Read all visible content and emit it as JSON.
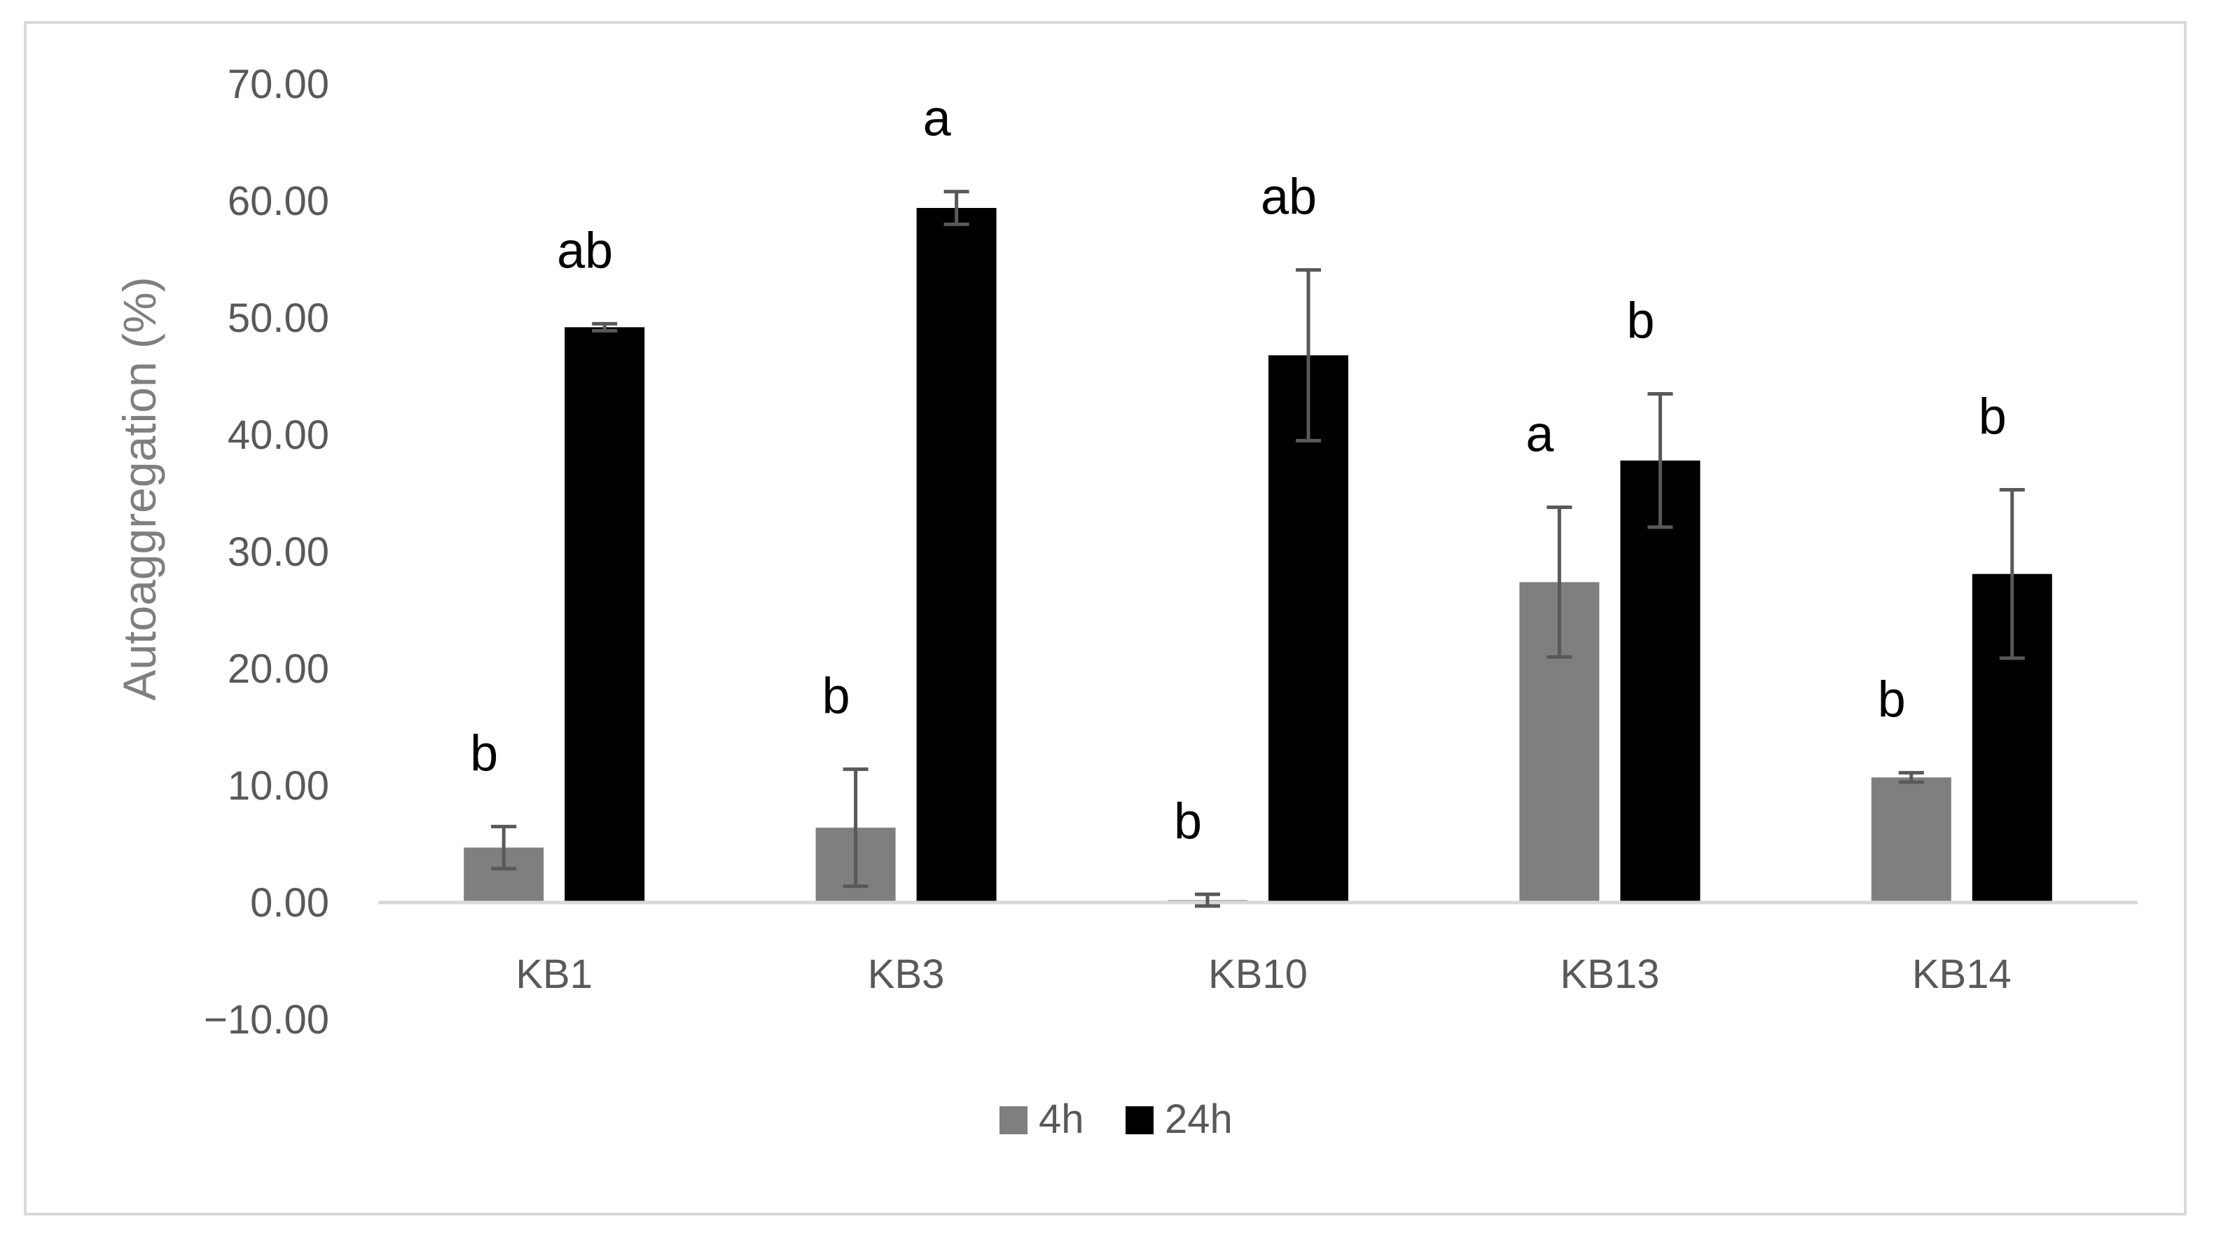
{
  "chart_data": {
    "type": "bar",
    "ylabel": "Autoaggregation (%)",
    "xlabel": "",
    "ylim": [
      -10,
      70
    ],
    "yticks": [
      "70.00",
      "60.00",
      "50.00",
      "40.00",
      "30.00",
      "20.00",
      "10.00",
      "0.00",
      "−10.00"
    ],
    "ytick_values": [
      70,
      60,
      50,
      40,
      30,
      20,
      10,
      0,
      -10
    ],
    "categories": [
      "KB1",
      "KB3",
      "KB10",
      "KB13",
      "KB14"
    ],
    "series": [
      {
        "name": "4h",
        "color": "#7f7f7f",
        "values": [
          4.7,
          6.4,
          0.2,
          27.4,
          10.7
        ],
        "errors": [
          1.8,
          5.0,
          0.5,
          6.4,
          0.4
        ],
        "significance": [
          "b",
          "b",
          "b",
          "a",
          "b"
        ]
      },
      {
        "name": "24h",
        "color": "#000000",
        "values": [
          49.2,
          59.4,
          46.8,
          37.8,
          28.1
        ],
        "errors": [
          0.3,
          1.4,
          7.3,
          5.7,
          7.2
        ],
        "significance": [
          "ab",
          "a",
          "ab",
          "b",
          "b"
        ]
      }
    ],
    "legend_position": "bottom",
    "grid": false
  }
}
